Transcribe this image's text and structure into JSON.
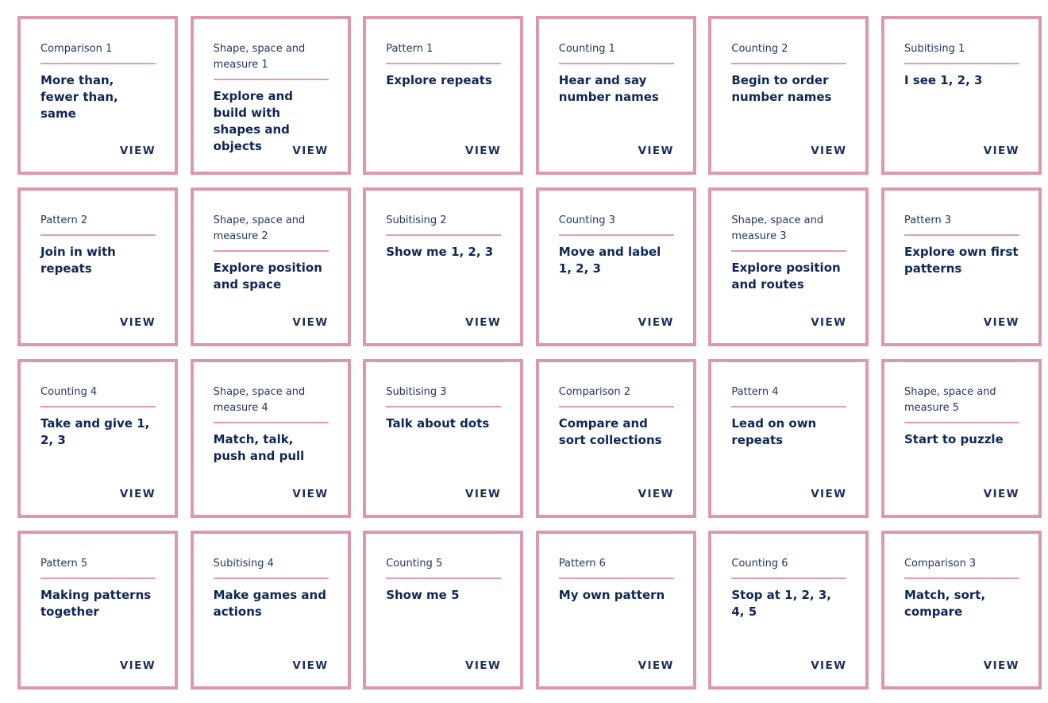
{
  "view_label": "VIEW",
  "colors": {
    "card_border": "#dc98ad",
    "divider": "#e49ab0",
    "text_dark": "#0f2755"
  },
  "cards": [
    {
      "category": "Comparison 1",
      "title": "More than, fewer than, same"
    },
    {
      "category": "Shape, space and measure 1",
      "title": "Explore and build with shapes and objects"
    },
    {
      "category": "Pattern 1",
      "title": "Explore repeats"
    },
    {
      "category": "Counting 1",
      "title": "Hear and say number names"
    },
    {
      "category": "Counting 2",
      "title": "Begin to order number names"
    },
    {
      "category": "Subitising 1",
      "title": "I see 1, 2, 3"
    },
    {
      "category": "Pattern 2",
      "title": "Join in with repeats"
    },
    {
      "category": "Shape, space and measure 2",
      "title": "Explore position and space"
    },
    {
      "category": "Subitising 2",
      "title": "Show me 1, 2, 3"
    },
    {
      "category": "Counting 3",
      "title": "Move and label 1, 2, 3"
    },
    {
      "category": "Shape, space and measure 3",
      "title": "Explore position and routes"
    },
    {
      "category": "Pattern 3",
      "title": "Explore own first patterns"
    },
    {
      "category": "Counting 4",
      "title": "Take and give 1, 2, 3"
    },
    {
      "category": "Shape, space and measure 4",
      "title": "Match, talk, push and pull"
    },
    {
      "category": "Subitising 3",
      "title": "Talk about dots"
    },
    {
      "category": "Comparison 2",
      "title": "Compare and sort collections"
    },
    {
      "category": "Pattern 4",
      "title": "Lead on own repeats"
    },
    {
      "category": "Shape, space and measure 5",
      "title": "Start to puzzle"
    },
    {
      "category": "Pattern 5",
      "title": "Making patterns together"
    },
    {
      "category": "Subitising 4",
      "title": "Make games and actions"
    },
    {
      "category": "Counting 5",
      "title": "Show me 5"
    },
    {
      "category": "Pattern 6",
      "title": "My own pattern"
    },
    {
      "category": "Counting 6",
      "title": "Stop at 1, 2, 3, 4, 5"
    },
    {
      "category": "Comparison 3",
      "title": "Match, sort, compare"
    }
  ]
}
